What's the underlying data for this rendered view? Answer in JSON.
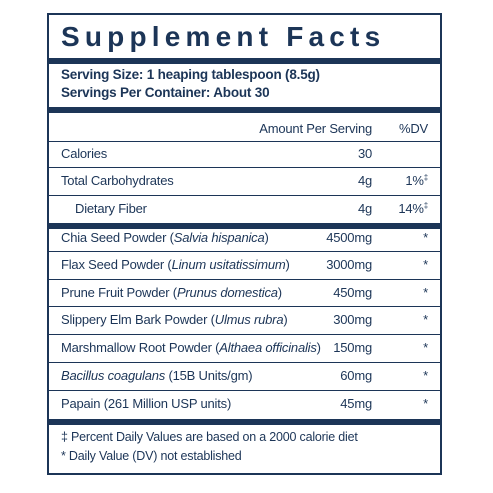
{
  "title": "Supplement Facts",
  "serving_size": "Serving Size: 1 heaping tablespoon (8.5g)",
  "servings_per_container": "Servings Per Container: About 30",
  "headers": {
    "amount": "Amount Per Serving",
    "dv": "%DV"
  },
  "nutrients": [
    {
      "name": "Calories",
      "amount": "30",
      "dv": ""
    },
    {
      "name": "Total Carbohydrates",
      "amount": "4g",
      "dv": "1%",
      "dv_mark": "‡"
    },
    {
      "name": "Dietary Fiber",
      "amount": "4g",
      "dv": "14%",
      "dv_mark": "‡"
    }
  ],
  "ingredients": [
    {
      "name": "Chia Seed Powder (",
      "latin": "Salvia hispanica",
      "close": ")",
      "amount": "4500mg",
      "dv": "*"
    },
    {
      "name": "Flax Seed Powder (",
      "latin": "Linum usitatissimum",
      "close": ")",
      "amount": "3000mg",
      "dv": "*"
    },
    {
      "name": "Prune Fruit Powder (",
      "latin": "Prunus domestica",
      "close": ")",
      "amount": "450mg",
      "dv": "*"
    },
    {
      "name": "Slippery Elm Bark Powder (",
      "latin": "Ulmus rubra",
      "close": ")",
      "amount": "300mg",
      "dv": "*"
    },
    {
      "name": "Marshmallow Root Powder (",
      "latin": "Althaea officinalis",
      "close": ")",
      "amount": "150mg",
      "dv": "*"
    },
    {
      "latin_first": "Bacillus coagulans",
      "rest": " (15B Units/gm)",
      "amount": "60mg",
      "dv": "*"
    },
    {
      "name": "Papain (261 Million USP units)",
      "amount": "45mg",
      "dv": "*"
    }
  ],
  "footnotes": [
    "‡ Percent Daily Values are based on a 2000 calorie diet",
    "* Daily Value (DV) not established"
  ],
  "colors": {
    "ink": "#1c3557",
    "background": "#ffffff"
  }
}
